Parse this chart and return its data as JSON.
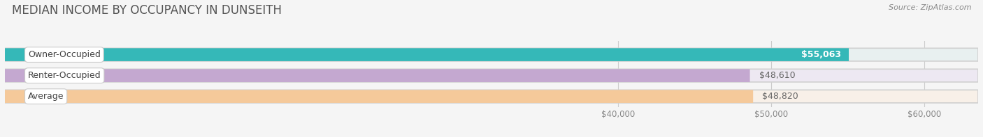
{
  "title": "MEDIAN INCOME BY OCCUPANCY IN DUNSEITH",
  "source": "Source: ZipAtlas.com",
  "categories": [
    "Owner-Occupied",
    "Renter-Occupied",
    "Average"
  ],
  "values": [
    55063,
    48610,
    48820
  ],
  "bar_colors": [
    "#35b8b8",
    "#c4a8d0",
    "#f5c99a"
  ],
  "bar_bg_colors": [
    "#e8f0f0",
    "#ede8f2",
    "#f8f0e8"
  ],
  "value_labels": [
    "$55,063",
    "$48,610",
    "$48,820"
  ],
  "value_label_inside": [
    true,
    false,
    false
  ],
  "value_label_colors": [
    "#ffffff",
    "#666666",
    "#666666"
  ],
  "x_ticks": [
    40000,
    50000,
    60000
  ],
  "x_tick_labels": [
    "$40,000",
    "$50,000",
    "$60,000"
  ],
  "xlim_min": 0,
  "xlim_max": 63500,
  "background_color": "#f5f5f5",
  "title_fontsize": 12,
  "source_fontsize": 8,
  "bar_label_fontsize": 9,
  "category_fontsize": 9
}
